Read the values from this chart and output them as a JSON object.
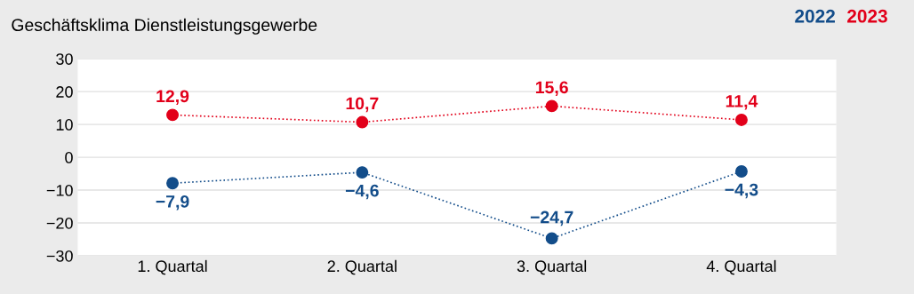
{
  "chart_data": {
    "type": "line",
    "title": "Geschäftsklima Dienstleistungsgewerbe",
    "categories": [
      "1. Quartal",
      "2. Quartal",
      "3. Quartal",
      "4. Quartal"
    ],
    "series": [
      {
        "name": "2022",
        "color": "#134d8a",
        "values": [
          -7.9,
          -4.6,
          -24.7,
          -4.3
        ],
        "value_labels": [
          "−7,9",
          "−4,6",
          "−24,7",
          "−4,3"
        ]
      },
      {
        "name": "2023",
        "color": "#e2001a",
        "values": [
          12.9,
          10.7,
          15.6,
          11.4
        ],
        "value_labels": [
          "12,9",
          "10,7",
          "15,6",
          "11,4"
        ]
      }
    ],
    "ylim": [
      -30,
      30
    ],
    "yticks": [
      {
        "value": -30,
        "label": "−30"
      },
      {
        "value": -20,
        "label": "−20"
      },
      {
        "value": -10,
        "label": "−10"
      },
      0,
      10,
      20,
      30
    ],
    "grid": "y",
    "legend": "top right",
    "marker": "circle",
    "line_style": "dotted"
  }
}
